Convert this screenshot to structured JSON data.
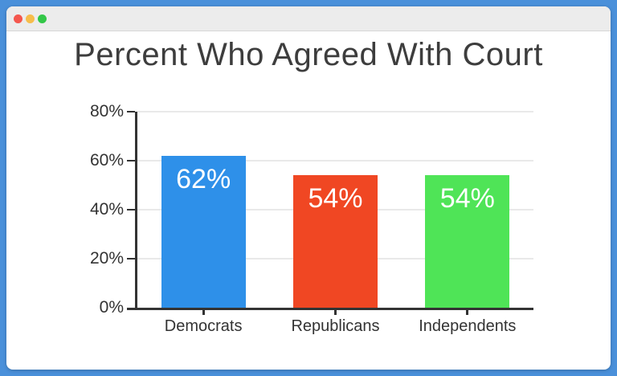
{
  "window": {
    "frame_color": "#4a90da",
    "titlebar": {
      "close_color": "#f4574e",
      "minimize_color": "#f6bd4b",
      "zoom_color": "#33c748"
    }
  },
  "chart_data": {
    "type": "bar",
    "title": "Percent Who Agreed With Court",
    "categories": [
      "Democrats",
      "Republicans",
      "Independents"
    ],
    "values": [
      62,
      54,
      54
    ],
    "value_labels": [
      "62%",
      "54%",
      "54%"
    ],
    "bar_colors": [
      "#2e90e9",
      "#f04723",
      "#4fe457"
    ],
    "xlabel": "",
    "ylabel": "",
    "ylim": [
      0,
      80
    ],
    "yticks": [
      0,
      20,
      40,
      60,
      80
    ],
    "ytick_labels": [
      "0%",
      "20%",
      "40%",
      "60%",
      "80%"
    ],
    "grid": true,
    "legend": false
  }
}
